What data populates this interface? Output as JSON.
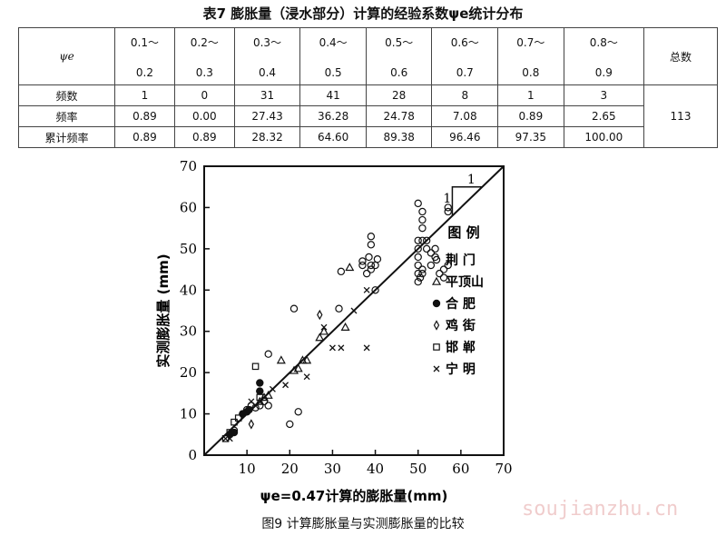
{
  "title": "表7  膨胀量（浸水部分）计算的经验系数ψe统计分布",
  "table": {
    "row_header": "ψe",
    "ranges": [
      {
        "from": "0.1～",
        "to": "0.2"
      },
      {
        "from": "0.2～",
        "to": "0.3"
      },
      {
        "from": "0.3～",
        "to": "0.4"
      },
      {
        "from": "0.4～",
        "to": "0.5"
      },
      {
        "from": "0.5～",
        "to": "0.6"
      },
      {
        "from": "0.6～",
        "to": "0.7"
      },
      {
        "from": "0.7～",
        "to": "0.8"
      },
      {
        "from": "0.8～",
        "to": "0.9"
      }
    ],
    "total_label": "总数",
    "total_value": "113",
    "rows": [
      {
        "label": "频数",
        "values": [
          "1",
          "0",
          "31",
          "41",
          "28",
          "8",
          "1",
          "3"
        ]
      },
      {
        "label": "频率",
        "values": [
          "0.89",
          "0.00",
          "27.43",
          "36.28",
          "24.78",
          "7.08",
          "0.89",
          "2.65"
        ]
      },
      {
        "label": "累计频率",
        "values": [
          "0.89",
          "0.89",
          "28.32",
          "64.60",
          "89.38",
          "96.46",
          "97.35",
          "100.00"
        ]
      }
    ]
  },
  "chart_data": {
    "type": "scatter",
    "xlabel": "ψe=0.47计算的膨胀量(mm)",
    "ylabel": "实测膨胀量 (mm)",
    "xlim": [
      0,
      70
    ],
    "ylim": [
      0,
      70
    ],
    "xticks": [
      10,
      20,
      30,
      40,
      50,
      60,
      70
    ],
    "yticks": [
      0,
      10,
      20,
      30,
      40,
      50,
      60,
      70
    ],
    "reference_line": {
      "from": [
        0,
        0
      ],
      "to": [
        70,
        70
      ],
      "slope_label_run": "1",
      "slope_label_rise": "1"
    },
    "legend_title": "图 例",
    "series": [
      {
        "name": "荆 门",
        "marker": "circle-open",
        "points": [
          [
            7,
            6
          ],
          [
            9,
            10
          ],
          [
            10,
            11
          ],
          [
            11,
            12
          ],
          [
            12,
            11.5
          ],
          [
            13,
            12
          ],
          [
            14,
            13
          ],
          [
            15,
            12
          ],
          [
            15,
            24.5
          ],
          [
            20,
            7.5
          ],
          [
            21,
            35.5
          ],
          [
            22,
            10.5
          ],
          [
            31.5,
            35.5
          ],
          [
            32,
            44.5
          ],
          [
            37,
            46
          ],
          [
            37,
            47
          ],
          [
            38,
            44
          ],
          [
            38.5,
            48
          ],
          [
            39,
            45
          ],
          [
            39,
            46
          ],
          [
            39,
            51
          ],
          [
            39,
            53
          ],
          [
            40,
            40
          ],
          [
            40,
            46
          ],
          [
            40.5,
            47.5
          ],
          [
            50,
            61
          ],
          [
            50,
            52
          ],
          [
            50,
            50
          ],
          [
            50,
            48
          ],
          [
            50,
            46
          ],
          [
            50,
            44
          ],
          [
            50,
            42
          ],
          [
            50.5,
            43
          ],
          [
            51,
            59
          ],
          [
            51,
            57
          ],
          [
            51,
            55
          ],
          [
            51,
            52
          ],
          [
            51,
            45
          ],
          [
            51,
            44
          ],
          [
            52,
            52
          ],
          [
            52,
            50
          ],
          [
            53,
            49
          ],
          [
            53,
            46
          ],
          [
            54,
            50
          ],
          [
            54,
            48
          ],
          [
            55,
            44
          ],
          [
            56,
            43
          ],
          [
            56,
            45
          ],
          [
            57,
            46
          ],
          [
            57,
            59
          ],
          [
            57,
            60
          ]
        ]
      },
      {
        "name": "平顶山",
        "marker": "triangle-open",
        "points": [
          [
            13,
            13
          ],
          [
            14,
            14
          ],
          [
            15,
            14.5
          ],
          [
            18,
            23
          ],
          [
            21,
            20.5
          ],
          [
            22,
            21
          ],
          [
            23,
            23
          ],
          [
            24,
            23
          ],
          [
            27,
            28.5
          ],
          [
            28,
            30
          ],
          [
            33,
            31
          ],
          [
            34,
            45.5
          ]
        ]
      },
      {
        "name": "合 肥",
        "marker": "circle-filled",
        "points": [
          [
            6,
            5
          ],
          [
            7,
            5.5
          ],
          [
            9,
            10
          ],
          [
            10,
            10.5
          ],
          [
            10.5,
            11
          ],
          [
            13,
            17.5
          ],
          [
            13,
            15.5
          ]
        ]
      },
      {
        "name": "鸡 街",
        "marker": "diamond-open",
        "points": [
          [
            11,
            7.5
          ],
          [
            27,
            34
          ]
        ]
      },
      {
        "name": "邯 郸",
        "marker": "square-open",
        "points": [
          [
            5,
            4
          ],
          [
            6,
            5.5
          ],
          [
            7,
            8
          ],
          [
            8,
            9
          ],
          [
            12,
            21.5
          ],
          [
            13,
            14
          ]
        ]
      },
      {
        "name": "宁 明",
        "marker": "x",
        "points": [
          [
            5,
            4
          ],
          [
            6,
            4
          ],
          [
            11,
            13
          ],
          [
            16,
            16
          ],
          [
            19,
            17
          ],
          [
            24,
            19
          ],
          [
            28,
            31
          ],
          [
            30,
            26
          ],
          [
            32,
            26
          ],
          [
            35,
            35
          ],
          [
            38,
            26
          ],
          [
            38,
            40
          ]
        ]
      }
    ]
  },
  "caption": "图9  计算膨胀量与实测膨胀量的比较",
  "watermark": "soujianzhu.cn"
}
